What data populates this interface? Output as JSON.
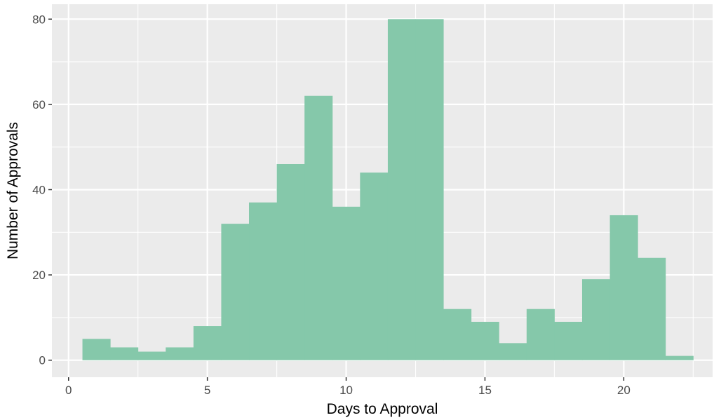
{
  "chart_data": {
    "type": "bar",
    "title": "",
    "xlabel": "Days to Approval",
    "ylabel": "Number of Approvals",
    "binwidth": 1,
    "bin_centers": [
      1,
      2,
      3,
      4,
      5,
      6,
      7,
      8,
      9,
      10,
      11,
      12,
      13,
      14,
      15,
      16,
      17,
      18,
      19,
      20,
      21,
      22
    ],
    "values": [
      5,
      3,
      2,
      3,
      8,
      32,
      37,
      46,
      62,
      36,
      44,
      80,
      80,
      12,
      9,
      4,
      12,
      9,
      19,
      34,
      24,
      1
    ],
    "xlim": [
      -0.6,
      23.2
    ],
    "ylim": [
      -4,
      83.5
    ],
    "x_ticks": [
      0,
      5,
      10,
      15,
      20
    ],
    "x_tick_labels": [
      "0",
      "5",
      "10",
      "15",
      "20"
    ],
    "y_ticks": [
      0,
      20,
      40,
      60,
      80
    ],
    "y_tick_labels": [
      "0",
      "20",
      "40",
      "60",
      "80"
    ],
    "grid": true,
    "legend": "none",
    "colors": {
      "bar": "#85c8aa",
      "panel": "#ebebeb",
      "grid_major": "#ffffff",
      "tick": "#333333"
    }
  }
}
